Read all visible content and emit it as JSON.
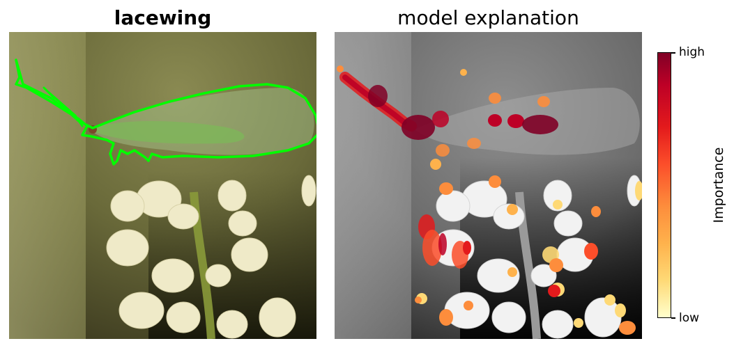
{
  "panels": {
    "left_title": "lacewing",
    "right_title": "model explanation"
  },
  "colorbar": {
    "label": "Importance",
    "high_label": "high",
    "low_label": "low",
    "colormap": "YlOrRd",
    "colors": [
      "#800026",
      "#bd0026",
      "#e31a1c",
      "#fc4e2a",
      "#fd8d3c",
      "#feb24c",
      "#fed976",
      "#ffffcc"
    ]
  },
  "annotation": {
    "outline_color": "#00ff00"
  }
}
